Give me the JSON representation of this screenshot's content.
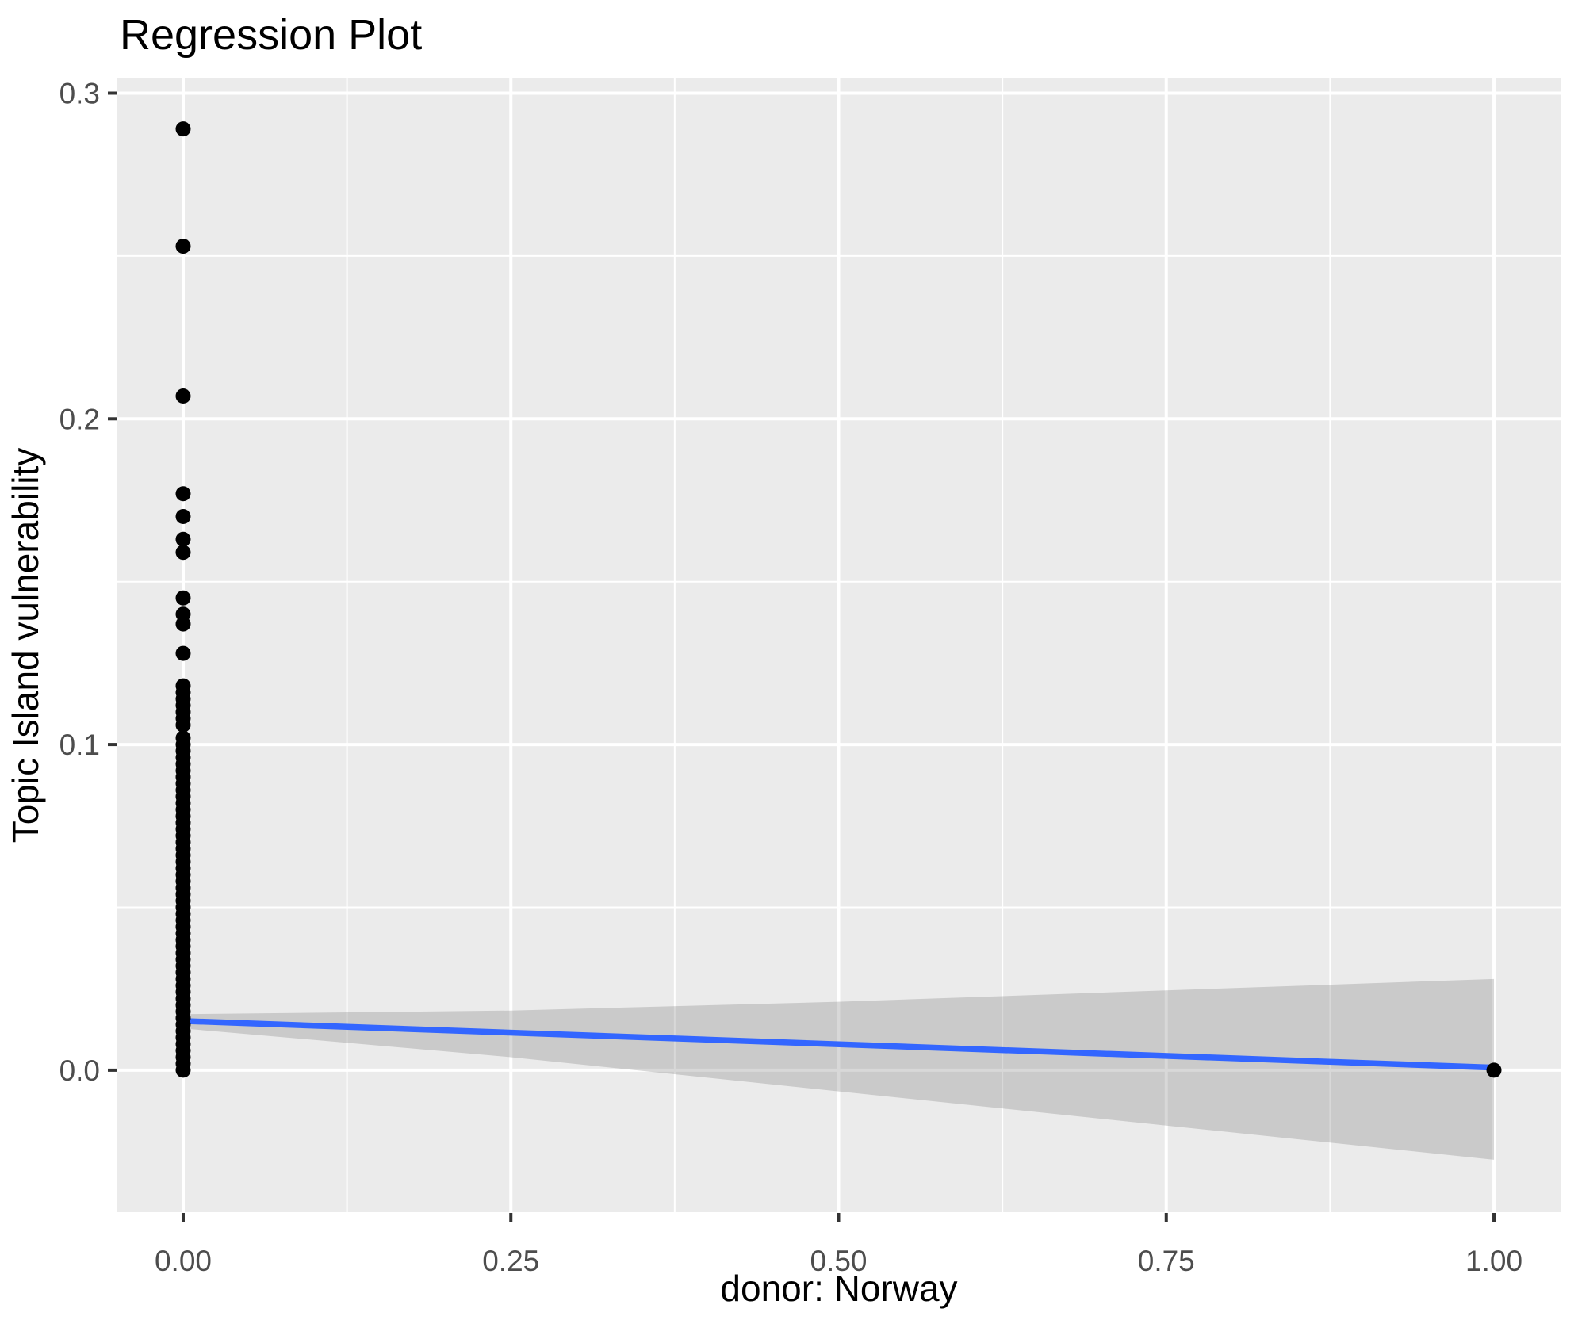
{
  "chart_data": {
    "type": "scatter",
    "title": "Regression Plot",
    "xlabel": "donor: Norway",
    "ylabel": "Topic Island vulnerability",
    "xlim": [
      -0.0502,
      1.0508
    ],
    "ylim": [
      -0.0436,
      0.3045
    ],
    "x_ticks": {
      "values": [
        0.0,
        0.25,
        0.5,
        0.75,
        1.0
      ],
      "labels": [
        "0.00",
        "0.25",
        "0.50",
        "0.75",
        "1.00"
      ]
    },
    "y_ticks": {
      "values": [
        0.0,
        0.1,
        0.2,
        0.3
      ],
      "labels": [
        "0.0",
        "0.1",
        "0.2",
        "0.3"
      ]
    },
    "x_minor_gridlines": [
      0.125,
      0.375,
      0.625,
      0.875
    ],
    "y_minor_gridlines": [
      0.05,
      0.15,
      0.25
    ],
    "grid": true,
    "legend": "none",
    "points": {
      "x0_column_x": 0.0,
      "x0_column_y": [
        0.289,
        0.253,
        0.207,
        0.177,
        0.17,
        0.163,
        0.159,
        0.145,
        0.14,
        0.137,
        0.128,
        0.118,
        0.116,
        0.114,
        0.112,
        0.11,
        0.108,
        0.106,
        0.102,
        0.1,
        0.098,
        0.096,
        0.094,
        0.092,
        0.09,
        0.088,
        0.086,
        0.084,
        0.082,
        0.08,
        0.078,
        0.076,
        0.074,
        0.072,
        0.07,
        0.068,
        0.066,
        0.064,
        0.062,
        0.06,
        0.058,
        0.056,
        0.054,
        0.052,
        0.05,
        0.048,
        0.046,
        0.044,
        0.042,
        0.04,
        0.038,
        0.036,
        0.034,
        0.032,
        0.03,
        0.028,
        0.026,
        0.024,
        0.022,
        0.02,
        0.018,
        0.016,
        0.014,
        0.012,
        0.01,
        0.008,
        0.006,
        0.004,
        0.002,
        0.0
      ],
      "x1_point_x": 1.0,
      "x1_point_y": [
        0.0
      ]
    },
    "regression_line": {
      "x": [
        0.0,
        1.0
      ],
      "y": [
        0.0151,
        0.0008
      ]
    },
    "confidence_band": {
      "x": [
        0.0,
        0.25,
        0.5,
        0.75,
        1.0
      ],
      "upper": [
        0.0172,
        0.0183,
        0.021,
        0.0245,
        0.028
      ],
      "lower": [
        0.0128,
        0.004,
        -0.0065,
        -0.017,
        -0.0275
      ]
    },
    "colors": {
      "panel_background": "#EBEBEB",
      "gridline": "#FFFFFF",
      "point": "#000000",
      "regression_line": "#3366FF",
      "confidence_band_fill": "#7F7F7F",
      "confidence_band_opacity": 0.3,
      "tick_mark": "#333333",
      "tick_label": "#4D4D4D",
      "title_text": "#000000"
    }
  }
}
